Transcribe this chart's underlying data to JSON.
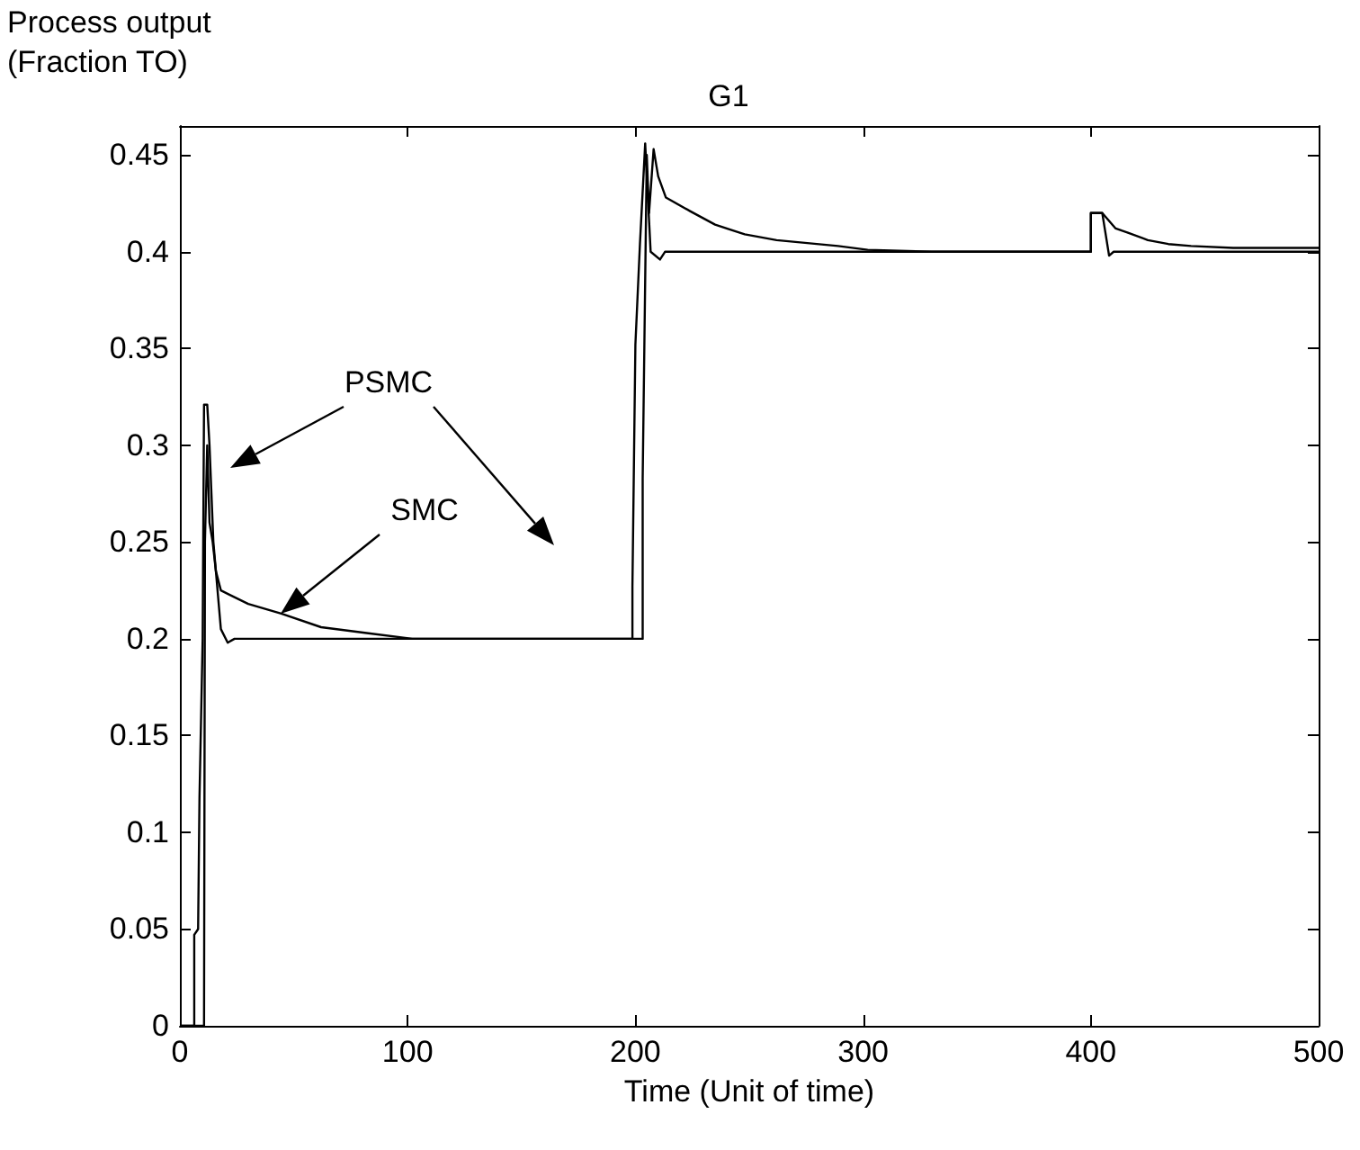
{
  "chart_data": {
    "type": "line",
    "title": "G1",
    "xlabel": "Time (Unit of time)",
    "ylabel": "Process output\n(Fraction TO)",
    "xlim": [
      0,
      500
    ],
    "xticks": [
      0,
      100,
      200,
      300,
      400,
      500
    ],
    "ylim": [
      0,
      0.465
    ],
    "yticks": [
      0,
      0.05,
      0.1,
      0.15,
      0.2,
      0.25,
      0.3,
      0.35,
      0.4,
      0.45
    ],
    "grid": false,
    "marker": "none",
    "line_style": "solid",
    "annotations": [
      "PSMC",
      "SMC"
    ],
    "series": [
      {
        "color": "#000000",
        "x": [
          0,
          6.3,
          6.3,
          8,
          8.6,
          10,
          10.6,
          12,
          13,
          14.7,
          18,
          21,
          24,
          198.7,
          198.7,
          200,
          202,
          204.3,
          206.7,
          210.8,
          213,
          400,
          400,
          405,
          408,
          410,
          500
        ],
        "values": [
          0,
          0,
          0.047,
          0.05,
          0.118,
          0.2,
          0.321,
          0.321,
          0.3,
          0.25,
          0.205,
          0.198,
          0.2,
          0.2,
          0.227,
          0.352,
          0.404,
          0.456,
          0.4,
          0.396,
          0.4,
          0.4,
          0.42,
          0.42,
          0.398,
          0.4,
          0.4
        ]
      },
      {
        "color": "#000000",
        "x": [
          0,
          10.6,
          11,
          12,
          13,
          14.4,
          15.8,
          18,
          30,
          44.5,
          62,
          82,
          102,
          203.2,
          203.2,
          205,
          206,
          208,
          210,
          213.4,
          224,
          235,
          248,
          262,
          289,
          302,
          330,
          400,
          400,
          405,
          410.9,
          416,
          425,
          434,
          444,
          462.5,
          500
        ],
        "values": [
          0,
          0,
          0.25,
          0.3,
          0.26,
          0.25,
          0.235,
          0.225,
          0.218,
          0.213,
          0.206,
          0.203,
          0.2,
          0.2,
          0.283,
          0.45,
          0.42,
          0.453,
          0.439,
          0.428,
          0.421,
          0.414,
          0.409,
          0.406,
          0.403,
          0.401,
          0.4,
          0.4,
          0.42,
          0.42,
          0.412,
          0.41,
          0.406,
          0.404,
          0.403,
          0.402,
          0.402
        ]
      }
    ]
  }
}
